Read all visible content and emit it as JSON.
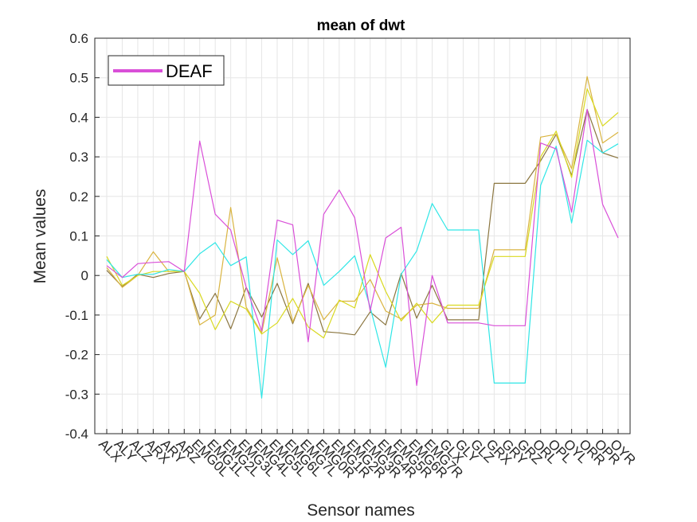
{
  "chart_data": {
    "type": "line",
    "title": "mean of dwt",
    "xlabel": "Sensor names",
    "ylabel": "Mean values",
    "ylim": [
      -0.4,
      0.6
    ],
    "yticks": [
      "-0.4",
      "-0.3",
      "-0.2",
      "-0.1",
      "0",
      "0.1",
      "0.2",
      "0.3",
      "0.4",
      "0.5",
      "0.6"
    ],
    "ytick_values": [
      -0.4,
      -0.3,
      -0.2,
      -0.1,
      0,
      0.1,
      0.2,
      0.3,
      0.4,
      0.5,
      0.6
    ],
    "grid": true,
    "legend_position": "top-left",
    "categories": [
      "ALX",
      "ALY",
      "ALZ",
      "ARX",
      "ARY",
      "ARZ",
      "EMG0L",
      "EMG1L",
      "EMG2L",
      "EMG3L",
      "EMG4L",
      "EMG5L",
      "EMG6L",
      "EMG7L",
      "EMG0R",
      "EMG1R",
      "EMG2R",
      "EMG3R",
      "EMG4R",
      "EMG5R",
      "EMG6R",
      "EMG7R",
      "GLX",
      "GLY",
      "GLZ",
      "GRX",
      "GRY",
      "GRZ",
      "ORL",
      "OPL",
      "OYL",
      "ORR",
      "OPR",
      "OYR"
    ],
    "xtick_labels": [
      "ALX",
      "ALY",
      "ALZ",
      "ARX",
      "ARY",
      "ARZ",
      "EMG0L",
      "EMG1L",
      "EMG2L",
      "EMG3L",
      "EMG4L",
      "EMG5L",
      "EMG6L",
      "EMG7L",
      "EMG0R",
      "EMG1R",
      "EMG2R",
      "EMG3R",
      "EMG4R",
      "EMG5R",
      "EMG6R",
      "EMG7R",
      "GLX",
      "GLY",
      "GLZ",
      "GRX",
      "GRY",
      "GRZ",
      "ORL",
      "OPL",
      "OYL",
      "ORR",
      "OPR",
      "OYR"
    ],
    "series": [
      {
        "name": "DEAF",
        "color": "#d94fd8",
        "in_legend": true,
        "values": [
          0.025,
          -0.005,
          0.03,
          0.033,
          0.035,
          0.01,
          0.34,
          0.155,
          0.115,
          -0.03,
          -0.14,
          0.14,
          0.128,
          -0.168,
          0.155,
          0.216,
          0.146,
          -0.09,
          0.095,
          0.122,
          -0.278,
          0.0,
          -0.12,
          -0.12,
          -0.12,
          -0.127,
          -0.127,
          -0.127,
          0.335,
          0.32,
          0.16,
          0.42,
          0.18,
          0.095
        ]
      },
      {
        "color": "#2fe6e6",
        "in_legend": false,
        "values": [
          0.04,
          -0.005,
          0.003,
          0.003,
          0.015,
          0.01,
          0.055,
          0.083,
          0.025,
          0.047,
          -0.31,
          0.09,
          0.053,
          0.088,
          -0.025,
          0.01,
          0.05,
          -0.08,
          -0.232,
          0.003,
          0.062,
          0.182,
          0.115,
          0.115,
          0.115,
          -0.272,
          -0.272,
          -0.272,
          0.228,
          0.327,
          0.133,
          0.342,
          0.31,
          0.333
        ]
      },
      {
        "color": "#d9d920",
        "in_legend": false,
        "values": [
          0.048,
          -0.025,
          0.0,
          0.01,
          0.01,
          0.01,
          -0.045,
          -0.137,
          -0.065,
          -0.085,
          -0.148,
          -0.12,
          -0.058,
          -0.13,
          -0.158,
          -0.062,
          -0.082,
          0.053,
          -0.04,
          -0.115,
          -0.07,
          -0.12,
          -0.075,
          -0.075,
          -0.075,
          0.048,
          0.048,
          0.048,
          0.3,
          0.365,
          0.248,
          0.472,
          0.378,
          0.412
        ]
      },
      {
        "color": "#d9b440",
        "in_legend": false,
        "values": [
          0.02,
          -0.03,
          0.0,
          0.06,
          0.01,
          0.012,
          -0.125,
          -0.1,
          0.172,
          -0.08,
          -0.145,
          0.045,
          -0.118,
          -0.025,
          -0.112,
          -0.065,
          -0.065,
          -0.01,
          -0.09,
          -0.11,
          -0.075,
          -0.07,
          -0.083,
          -0.083,
          -0.083,
          0.065,
          0.065,
          0.065,
          0.35,
          0.357,
          0.27,
          0.503,
          0.335,
          0.362
        ]
      },
      {
        "color": "#8b7640",
        "in_legend": false,
        "values": [
          0.013,
          -0.028,
          0.003,
          -0.005,
          0.005,
          0.01,
          -0.11,
          -0.045,
          -0.135,
          -0.03,
          -0.105,
          -0.02,
          -0.122,
          -0.02,
          -0.142,
          -0.145,
          -0.15,
          -0.092,
          -0.125,
          0.005,
          -0.108,
          -0.025,
          -0.112,
          -0.112,
          -0.112,
          0.233,
          0.233,
          0.233,
          0.29,
          0.357,
          0.253,
          0.42,
          0.31,
          0.297
        ]
      }
    ]
  }
}
